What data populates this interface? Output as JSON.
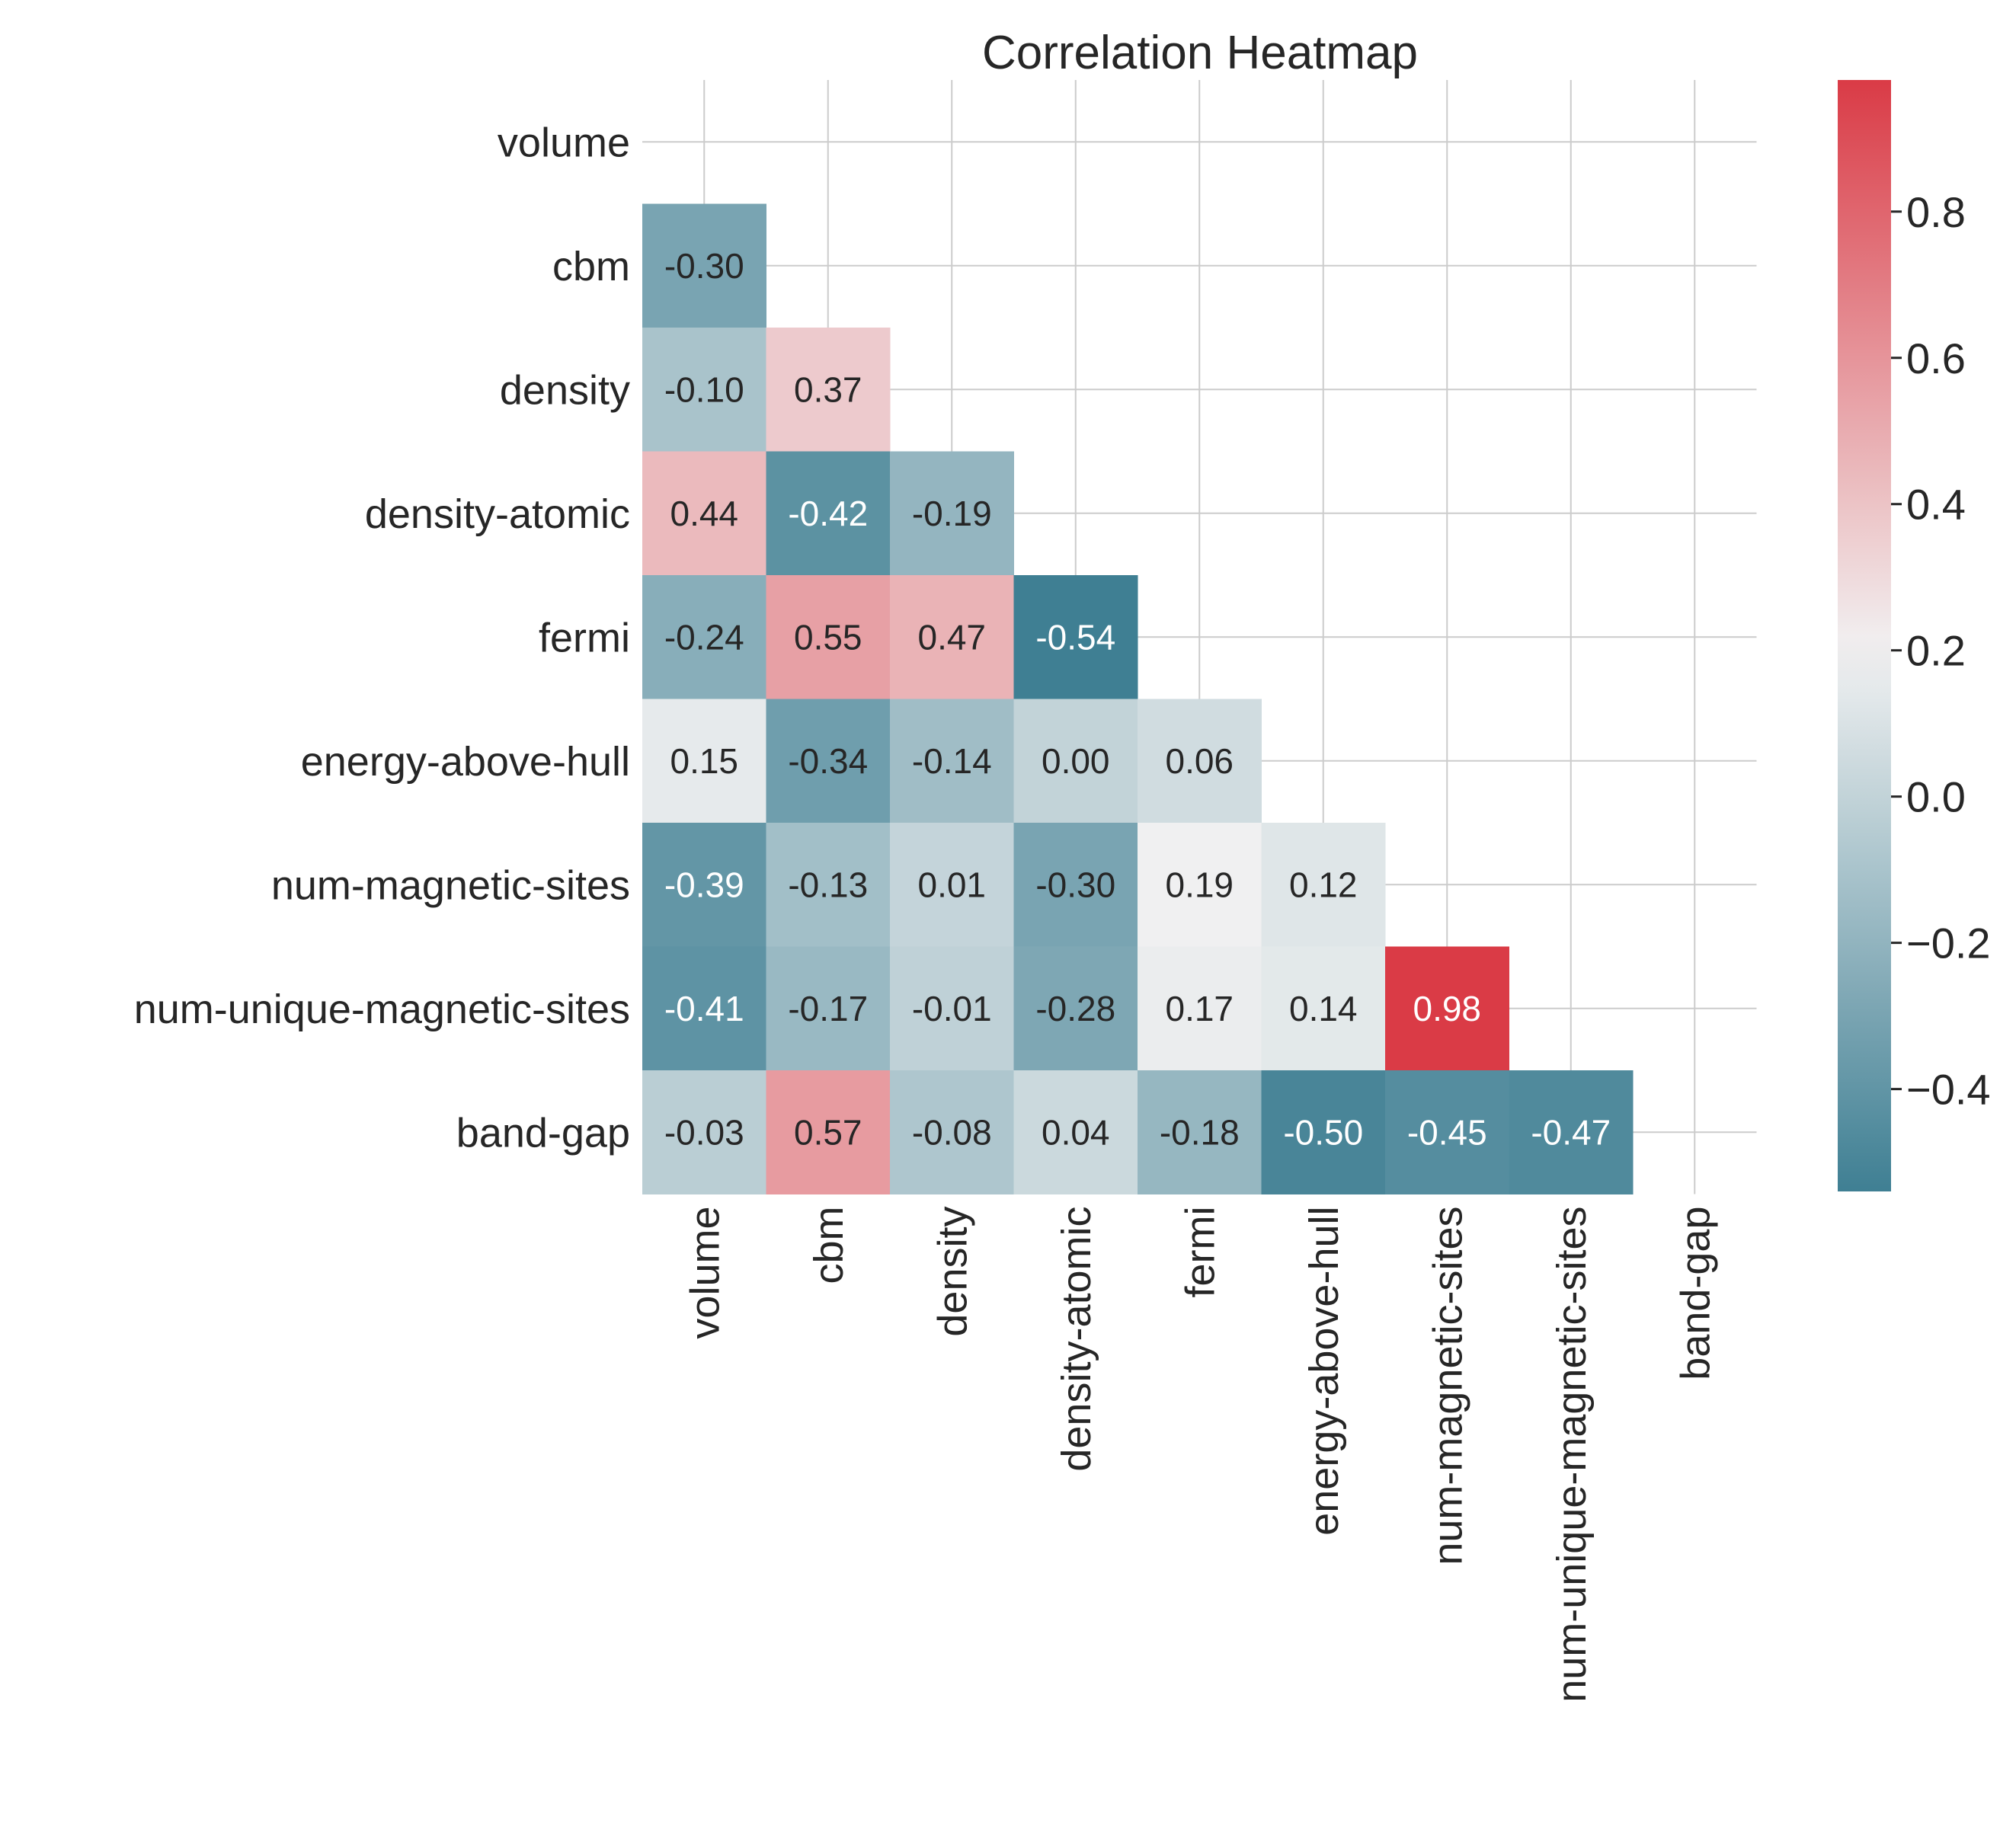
{
  "chart_data": {
    "type": "heatmap",
    "title": "Correlation Heatmap",
    "xlabel": "",
    "ylabel": "",
    "labels": [
      "volume",
      "cbm",
      "density",
      "density-atomic",
      "fermi",
      "energy-above-hull",
      "num-magnetic-sites",
      "num-unique-magnetic-sites",
      "band-gap"
    ],
    "mask": "upper-triangle-including-diagonal",
    "matrix": [
      [
        null,
        null,
        null,
        null,
        null,
        null,
        null,
        null,
        null
      ],
      [
        -0.3,
        null,
        null,
        null,
        null,
        null,
        null,
        null,
        null
      ],
      [
        -0.1,
        0.37,
        null,
        null,
        null,
        null,
        null,
        null,
        null
      ],
      [
        0.44,
        -0.42,
        -0.19,
        null,
        null,
        null,
        null,
        null,
        null
      ],
      [
        -0.24,
        0.55,
        0.47,
        -0.54,
        null,
        null,
        null,
        null,
        null
      ],
      [
        0.15,
        -0.34,
        -0.14,
        0.0,
        0.06,
        null,
        null,
        null,
        null
      ],
      [
        -0.39,
        -0.13,
        0.01,
        -0.3,
        0.19,
        0.12,
        null,
        null,
        null
      ],
      [
        -0.41,
        -0.17,
        -0.01,
        -0.28,
        0.17,
        0.14,
        0.98,
        null,
        null
      ],
      [
        -0.03,
        0.57,
        -0.08,
        0.04,
        -0.18,
        -0.5,
        -0.45,
        -0.47,
        null
      ]
    ],
    "value_format": "0.00",
    "colorbar": {
      "vmin": -0.54,
      "vmax": 0.98,
      "center": 0.2,
      "ticks": [
        -0.4,
        -0.2,
        0.0,
        0.2,
        0.4,
        0.6,
        0.8
      ],
      "tick_labels": [
        "−0.4",
        "−0.2",
        "0.0",
        "0.2",
        "0.4",
        "0.6",
        "0.8"
      ],
      "low_color": "#3f7f93",
      "mid_color": "#f2f2f2",
      "high_color": "#da3b46"
    },
    "grid": true,
    "legend": "colorbar-right"
  }
}
